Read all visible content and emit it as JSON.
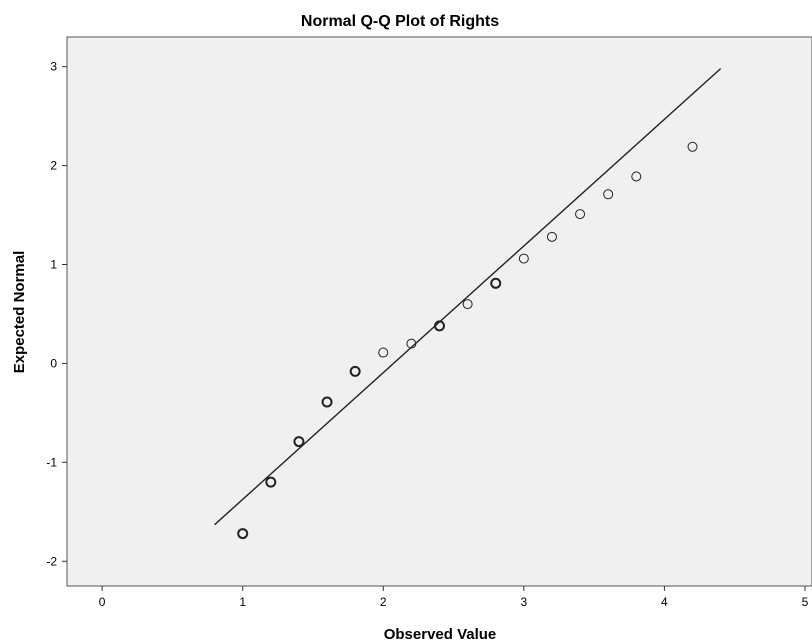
{
  "chart_data": {
    "type": "scatter",
    "title": "Normal Q-Q Plot of Rights",
    "xlabel": "Observed Value",
    "ylabel": "Expected Normal",
    "xlim": [
      -0.25,
      5.05
    ],
    "ylim": [
      -2.25,
      3.3
    ],
    "xticks": [
      "0",
      "1",
      "2",
      "3",
      "4",
      "5"
    ],
    "yticks": [
      "-2",
      "-1",
      "0",
      "1",
      "2",
      "3"
    ],
    "grid": false,
    "legend": "none",
    "colors": {
      "plot_background": "#f0f0f0",
      "points": "#222222",
      "reference_line": "#222222"
    },
    "reference_line": {
      "x": [
        0.8,
        4.4
      ],
      "y": [
        -1.63,
        2.98
      ]
    },
    "series": [
      {
        "x": [
          1.0,
          1.2,
          1.4,
          1.6,
          1.8,
          2.0,
          2.2,
          2.4,
          2.6,
          2.8,
          3.0,
          3.2,
          3.4,
          3.6,
          3.8,
          4.2
        ],
        "y": [
          -1.72,
          -1.2,
          -0.79,
          -0.39,
          -0.08,
          0.11,
          0.2,
          0.38,
          0.6,
          0.81,
          1.06,
          1.28,
          1.51,
          1.71,
          1.89,
          2.19
        ],
        "emphasis": [
          true,
          true,
          true,
          true,
          true,
          false,
          false,
          true,
          false,
          true,
          false,
          false,
          false,
          false,
          false,
          false
        ]
      }
    ]
  }
}
